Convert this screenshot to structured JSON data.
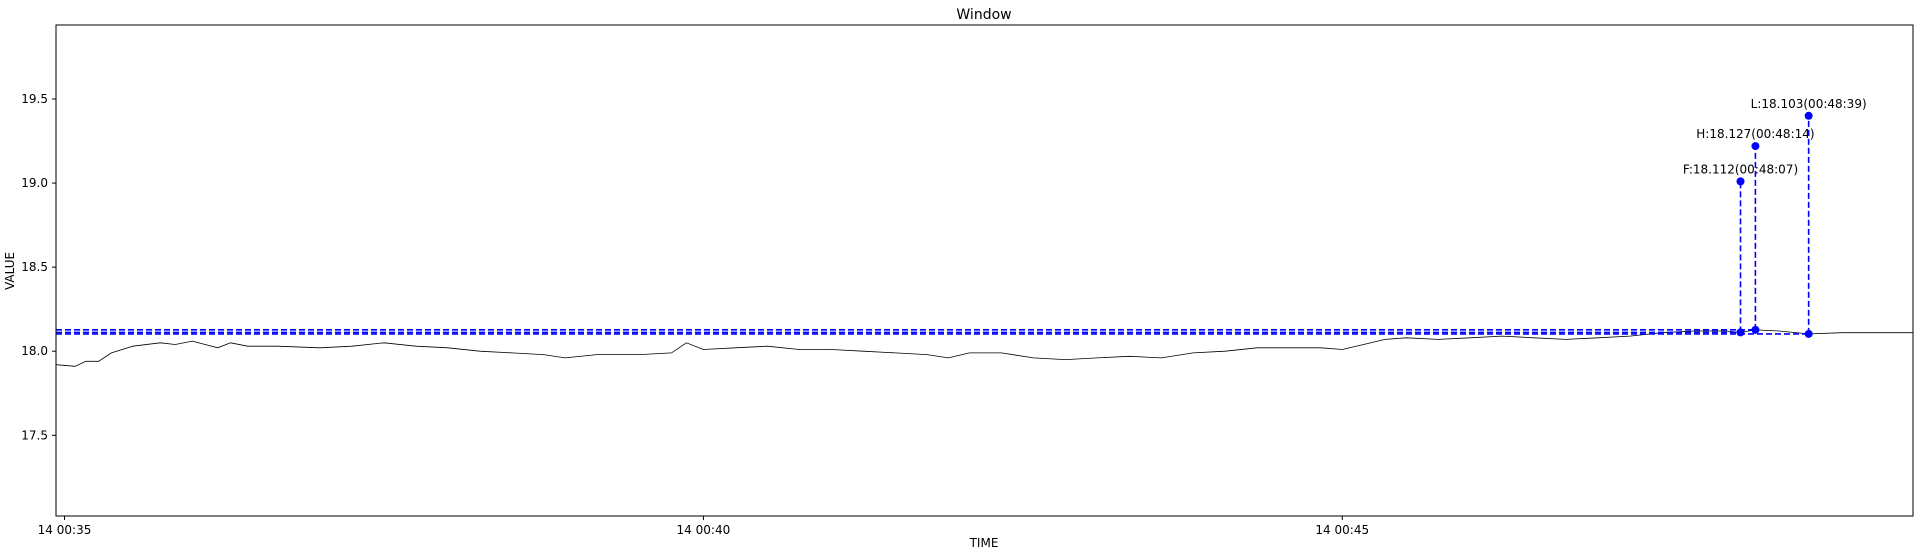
{
  "chart_data": {
    "type": "line",
    "title": "Window",
    "xlabel": "TIME",
    "ylabel": "VALUE",
    "xlim": [
      "14 00:34:56",
      "14 00:49:28"
    ],
    "ylim": [
      17.02,
      19.94
    ],
    "x_ticks": [
      {
        "t": "14 00:35:00",
        "label": "14 00:35"
      },
      {
        "t": "14 00:40:00",
        "label": "14 00:40"
      },
      {
        "t": "14 00:45:00",
        "label": "14 00:45"
      }
    ],
    "y_ticks": [
      17.5,
      18.0,
      18.5,
      19.0,
      19.5
    ],
    "grid": false,
    "series": [
      {
        "color": "#000000",
        "points": [
          [
            "14 00:34:56",
            17.92
          ],
          [
            "14 00:35:05",
            17.91
          ],
          [
            "14 00:35:10",
            17.94
          ],
          [
            "14 00:35:16",
            17.94
          ],
          [
            "14 00:35:22",
            17.99
          ],
          [
            "14 00:35:32",
            18.03
          ],
          [
            "14 00:35:45",
            18.05
          ],
          [
            "14 00:35:52",
            18.04
          ],
          [
            "14 00:36:00",
            18.06
          ],
          [
            "14 00:36:06",
            18.04
          ],
          [
            "14 00:36:12",
            18.02
          ],
          [
            "14 00:36:18",
            18.05
          ],
          [
            "14 00:36:26",
            18.03
          ],
          [
            "14 00:36:40",
            18.03
          ],
          [
            "14 00:37:00",
            18.02
          ],
          [
            "14 00:37:15",
            18.03
          ],
          [
            "14 00:37:30",
            18.05
          ],
          [
            "14 00:37:45",
            18.03
          ],
          [
            "14 00:38:00",
            18.02
          ],
          [
            "14 00:38:15",
            18.0
          ],
          [
            "14 00:38:30",
            17.99
          ],
          [
            "14 00:38:45",
            17.98
          ],
          [
            "14 00:38:55",
            17.96
          ],
          [
            "14 00:39:10",
            17.98
          ],
          [
            "14 00:39:30",
            17.98
          ],
          [
            "14 00:39:45",
            17.99
          ],
          [
            "14 00:39:52",
            18.05
          ],
          [
            "14 00:40:00",
            18.01
          ],
          [
            "14 00:40:15",
            18.02
          ],
          [
            "14 00:40:30",
            18.03
          ],
          [
            "14 00:40:45",
            18.01
          ],
          [
            "14 00:41:00",
            18.01
          ],
          [
            "14 00:41:15",
            18.0
          ],
          [
            "14 00:41:30",
            17.99
          ],
          [
            "14 00:41:45",
            17.98
          ],
          [
            "14 00:41:55",
            17.96
          ],
          [
            "14 00:42:05",
            17.99
          ],
          [
            "14 00:42:20",
            17.99
          ],
          [
            "14 00:42:35",
            17.96
          ],
          [
            "14 00:42:50",
            17.95
          ],
          [
            "14 00:43:05",
            17.96
          ],
          [
            "14 00:43:20",
            17.97
          ],
          [
            "14 00:43:35",
            17.96
          ],
          [
            "14 00:43:50",
            17.99
          ],
          [
            "14 00:44:05",
            18.0
          ],
          [
            "14 00:44:20",
            18.02
          ],
          [
            "14 00:44:35",
            18.02
          ],
          [
            "14 00:44:50",
            18.02
          ],
          [
            "14 00:45:00",
            18.01
          ],
          [
            "14 00:45:10",
            18.04
          ],
          [
            "14 00:45:20",
            18.07
          ],
          [
            "14 00:45:30",
            18.08
          ],
          [
            "14 00:45:45",
            18.07
          ],
          [
            "14 00:46:00",
            18.08
          ],
          [
            "14 00:46:15",
            18.09
          ],
          [
            "14 00:46:30",
            18.08
          ],
          [
            "14 00:46:45",
            18.07
          ],
          [
            "14 00:47:00",
            18.08
          ],
          [
            "14 00:47:15",
            18.09
          ],
          [
            "14 00:47:30",
            18.11
          ],
          [
            "14 00:47:45",
            18.12
          ],
          [
            "14 00:48:00",
            18.12
          ],
          [
            "14 00:48:07",
            18.112
          ],
          [
            "14 00:48:14",
            18.127
          ],
          [
            "14 00:48:25",
            18.12
          ],
          [
            "14 00:48:39",
            18.103
          ],
          [
            "14 00:48:55",
            18.11
          ],
          [
            "14 00:49:10",
            18.11
          ],
          [
            "14 00:49:28",
            18.11
          ]
        ]
      }
    ],
    "markers": [
      {
        "label": "F:18.112(00:48:07)",
        "t": "14 00:48:07",
        "value": 18.112,
        "peak": 19.01,
        "color": "#0000ff"
      },
      {
        "label": "H:18.127(00:48:14)",
        "t": "14 00:48:14",
        "value": 18.127,
        "peak": 19.22,
        "color": "#0000ff"
      },
      {
        "label": "L:18.103(00:48:39)",
        "t": "14 00:48:39",
        "value": 18.103,
        "peak": 19.4,
        "color": "#0000ff"
      }
    ]
  }
}
